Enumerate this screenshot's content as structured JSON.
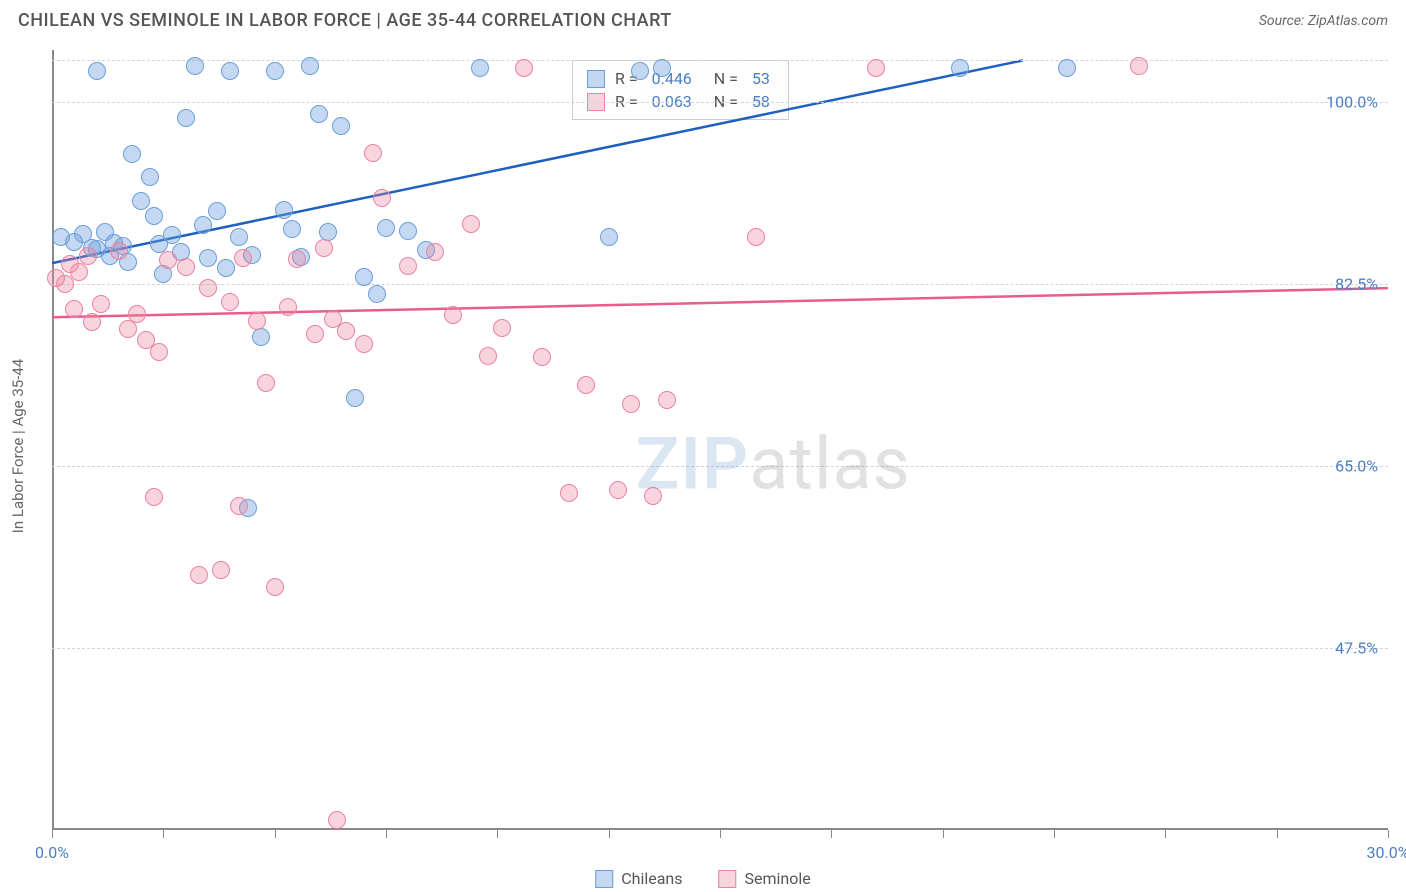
{
  "header": {
    "title": "CHILEAN VS SEMINOLE IN LABOR FORCE | AGE 35-44 CORRELATION CHART",
    "source": "Source: ZipAtlas.com"
  },
  "watermark": {
    "zip": "ZIP",
    "atlas": "atlas",
    "color_zip": "rgba(90,140,200,0.22)",
    "color_atlas": "rgba(120,120,120,0.22)"
  },
  "chart": {
    "type": "scatter",
    "ylabel": "In Labor Force | Age 35-44",
    "background_color": "#ffffff",
    "grid_color": "#d4d4d4",
    "xlim": [
      0,
      30
    ],
    "ylim": [
      30,
      105
    ],
    "xtick_positions": [
      0,
      2.5,
      5,
      7.5,
      10,
      12.5,
      15,
      17.5,
      20,
      22.5,
      25,
      27.5,
      30
    ],
    "xtick_labels": {
      "0": "0.0%",
      "30": "30.0%"
    },
    "ytick_positions": [
      47.5,
      65.0,
      82.5,
      100.0
    ],
    "ytick_labels": [
      "47.5%",
      "65.0%",
      "82.5%",
      "100.0%"
    ],
    "extra_gridline": 104,
    "series": [
      {
        "name": "Chileans",
        "color_fill": "rgba(107,159,219,0.40)",
        "color_stroke": "#6b9fdb",
        "line_color": "#1e5fbf",
        "r": 0.446,
        "n": 53,
        "trend": {
          "x1": 0,
          "y1": 84.5,
          "x2": 21.8,
          "y2": 104
        },
        "points": [
          {
            "x": 0.2,
            "y": 87
          },
          {
            "x": 0.5,
            "y": 86.5
          },
          {
            "x": 0.7,
            "y": 87.3
          },
          {
            "x": 0.9,
            "y": 86
          },
          {
            "x": 1.0,
            "y": 85.9
          },
          {
            "x": 1.2,
            "y": 87.5
          },
          {
            "x": 1.3,
            "y": 85.2
          },
          {
            "x": 1.4,
            "y": 86.4
          },
          {
            "x": 1.6,
            "y": 86.2
          },
          {
            "x": 1.7,
            "y": 84.6
          },
          {
            "x": 1.0,
            "y": 103
          },
          {
            "x": 1.8,
            "y": 95
          },
          {
            "x": 2.0,
            "y": 90.5
          },
          {
            "x": 2.2,
            "y": 92.8
          },
          {
            "x": 2.3,
            "y": 89
          },
          {
            "x": 2.4,
            "y": 86.3
          },
          {
            "x": 2.5,
            "y": 83.5
          },
          {
            "x": 2.7,
            "y": 87.2
          },
          {
            "x": 2.9,
            "y": 85.6
          },
          {
            "x": 3.0,
            "y": 98.5
          },
          {
            "x": 3.2,
            "y": 103.5
          },
          {
            "x": 3.4,
            "y": 88.2
          },
          {
            "x": 3.5,
            "y": 85
          },
          {
            "x": 3.7,
            "y": 89.5
          },
          {
            "x": 3.9,
            "y": 84
          },
          {
            "x": 4.0,
            "y": 103
          },
          {
            "x": 4.2,
            "y": 87
          },
          {
            "x": 4.4,
            "y": 61
          },
          {
            "x": 4.5,
            "y": 85.3
          },
          {
            "x": 4.7,
            "y": 77.4
          },
          {
            "x": 5.0,
            "y": 103
          },
          {
            "x": 5.2,
            "y": 89.6
          },
          {
            "x": 5.4,
            "y": 87.8
          },
          {
            "x": 5.6,
            "y": 85.1
          },
          {
            "x": 5.8,
            "y": 103.5
          },
          {
            "x": 6.0,
            "y": 98.8
          },
          {
            "x": 6.2,
            "y": 87.5
          },
          {
            "x": 6.5,
            "y": 97.7
          },
          {
            "x": 6.8,
            "y": 71.5
          },
          {
            "x": 7.0,
            "y": 83.2
          },
          {
            "x": 7.3,
            "y": 81.5
          },
          {
            "x": 7.5,
            "y": 87.9
          },
          {
            "x": 8.0,
            "y": 87.6
          },
          {
            "x": 8.4,
            "y": 85.8
          },
          {
            "x": 9.6,
            "y": 103.3
          },
          {
            "x": 12.5,
            "y": 87
          },
          {
            "x": 13.2,
            "y": 103
          },
          {
            "x": 13.7,
            "y": 103.3
          },
          {
            "x": 20.4,
            "y": 103.3
          },
          {
            "x": 22.8,
            "y": 103.3
          }
        ]
      },
      {
        "name": "Seminole",
        "color_fill": "rgba(236,131,162,0.35)",
        "color_stroke": "#ec83a2",
        "line_color": "#e85d8b",
        "r": 0.063,
        "n": 58,
        "trend": {
          "x1": 0,
          "y1": 79.3,
          "x2": 30,
          "y2": 82.1
        },
        "points": [
          {
            "x": 0.1,
            "y": 83.1
          },
          {
            "x": 0.3,
            "y": 82.5
          },
          {
            "x": 0.4,
            "y": 84.4
          },
          {
            "x": 0.6,
            "y": 83.7
          },
          {
            "x": 0.8,
            "y": 85.2
          },
          {
            "x": 0.5,
            "y": 80.1
          },
          {
            "x": 0.9,
            "y": 78.8
          },
          {
            "x": 1.1,
            "y": 80.6
          },
          {
            "x": 1.5,
            "y": 85.7
          },
          {
            "x": 1.7,
            "y": 78.2
          },
          {
            "x": 1.9,
            "y": 79.6
          },
          {
            "x": 2.1,
            "y": 77.1
          },
          {
            "x": 2.3,
            "y": 62.0
          },
          {
            "x": 2.4,
            "y": 76.0
          },
          {
            "x": 2.6,
            "y": 84.8
          },
          {
            "x": 3.0,
            "y": 84.1
          },
          {
            "x": 3.3,
            "y": 54.5
          },
          {
            "x": 3.5,
            "y": 82.1
          },
          {
            "x": 3.8,
            "y": 55.0
          },
          {
            "x": 4.0,
            "y": 80.8
          },
          {
            "x": 4.2,
            "y": 61.2
          },
          {
            "x": 4.3,
            "y": 85.0
          },
          {
            "x": 4.6,
            "y": 78.9
          },
          {
            "x": 4.8,
            "y": 73.0
          },
          {
            "x": 5.0,
            "y": 53.4
          },
          {
            "x": 5.3,
            "y": 80.3
          },
          {
            "x": 5.5,
            "y": 84.9
          },
          {
            "x": 5.9,
            "y": 77.7
          },
          {
            "x": 6.1,
            "y": 86.0
          },
          {
            "x": 6.3,
            "y": 79.1
          },
          {
            "x": 6.4,
            "y": 31.0
          },
          {
            "x": 6.6,
            "y": 78.0
          },
          {
            "x": 7.0,
            "y": 76.7
          },
          {
            "x": 7.2,
            "y": 95.1
          },
          {
            "x": 7.4,
            "y": 90.8
          },
          {
            "x": 8.0,
            "y": 84.2
          },
          {
            "x": 8.6,
            "y": 85.6
          },
          {
            "x": 9.0,
            "y": 79.5
          },
          {
            "x": 9.4,
            "y": 88.3
          },
          {
            "x": 9.8,
            "y": 75.6
          },
          {
            "x": 10.1,
            "y": 78.3
          },
          {
            "x": 10.6,
            "y": 103.3
          },
          {
            "x": 11.0,
            "y": 75.5
          },
          {
            "x": 11.6,
            "y": 62.4
          },
          {
            "x": 12.0,
            "y": 72.8
          },
          {
            "x": 12.7,
            "y": 62.7
          },
          {
            "x": 13.0,
            "y": 71.0
          },
          {
            "x": 13.5,
            "y": 62.1
          },
          {
            "x": 13.8,
            "y": 71.3
          },
          {
            "x": 15.8,
            "y": 87.0
          },
          {
            "x": 18.5,
            "y": 103.3
          },
          {
            "x": 24.4,
            "y": 103.5
          }
        ]
      }
    ],
    "bottom_legend": [
      {
        "label": "Chileans"
      },
      {
        "label": "Seminole"
      }
    ]
  }
}
